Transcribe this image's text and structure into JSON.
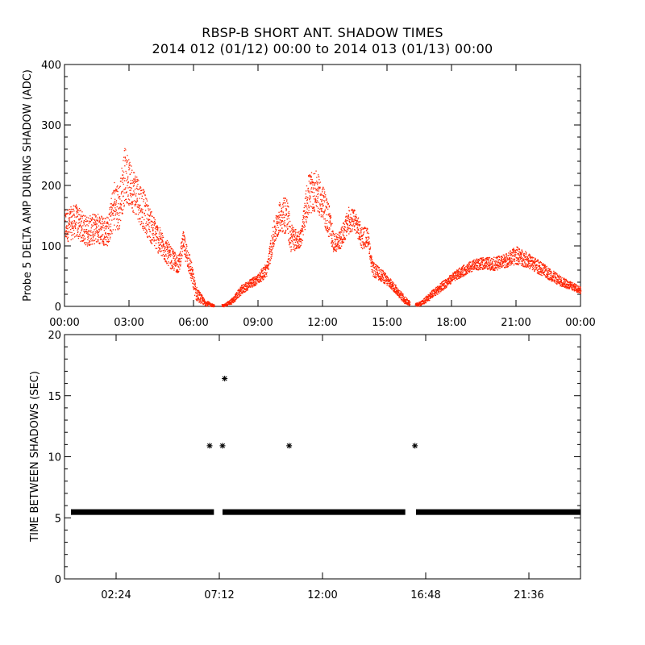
{
  "title": "RBSP-B SHORT ANT. SHADOW TIMES",
  "subtitle": "2014 012 (01/12) 00:00 to 2014 013 (01/13) 00:00",
  "colors": {
    "top_series": "#ff2200",
    "bottom_series": "#000000",
    "axes": "#000000",
    "background": "#ffffff"
  },
  "chart_data": [
    {
      "type": "scatter",
      "ylabel": "Probe 5 DELTA AMP DURING SHADOW (ADC)",
      "xlabel": "",
      "x_units": "hours since 2014-01-12 00:00",
      "xlim": [
        0,
        24
      ],
      "ylim": [
        0,
        400
      ],
      "x_ticks": [
        0,
        3,
        6,
        9,
        12,
        15,
        18,
        21,
        24
      ],
      "x_tick_labels": [
        "00:00",
        "03:00",
        "06:00",
        "09:00",
        "12:00",
        "15:00",
        "18:00",
        "21:00",
        "00:00"
      ],
      "y_ticks": [
        0,
        100,
        200,
        300,
        400
      ],
      "y_tick_labels": [
        "0",
        "100",
        "200",
        "300",
        "400"
      ],
      "grid": false,
      "series": [
        {
          "color": "#ff2200",
          "marker": "dot",
          "envelope": [
            {
              "x": 0.0,
              "low": 105,
              "high": 160
            },
            {
              "x": 0.5,
              "low": 115,
              "high": 170
            },
            {
              "x": 1.0,
              "low": 100,
              "high": 150
            },
            {
              "x": 1.5,
              "low": 105,
              "high": 155
            },
            {
              "x": 2.0,
              "low": 100,
              "high": 150
            },
            {
              "x": 2.3,
              "low": 130,
              "high": 210
            },
            {
              "x": 2.5,
              "low": 120,
              "high": 200
            },
            {
              "x": 2.8,
              "low": 175,
              "high": 270
            },
            {
              "x": 3.0,
              "low": 165,
              "high": 240
            },
            {
              "x": 3.3,
              "low": 150,
              "high": 225
            },
            {
              "x": 3.6,
              "low": 130,
              "high": 200
            },
            {
              "x": 4.0,
              "low": 105,
              "high": 160
            },
            {
              "x": 4.5,
              "low": 80,
              "high": 125
            },
            {
              "x": 5.0,
              "low": 60,
              "high": 95
            },
            {
              "x": 5.3,
              "low": 55,
              "high": 85
            },
            {
              "x": 5.5,
              "low": 90,
              "high": 125
            },
            {
              "x": 5.8,
              "low": 50,
              "high": 90
            },
            {
              "x": 6.1,
              "low": 10,
              "high": 35
            },
            {
              "x": 6.5,
              "low": 2,
              "high": 12
            },
            {
              "x": 6.9,
              "low": 0,
              "high": 4
            },
            {
              "x": 7.4,
              "low": 0,
              "high": 4
            },
            {
              "x": 7.8,
              "low": 5,
              "high": 15
            },
            {
              "x": 8.2,
              "low": 20,
              "high": 35
            },
            {
              "x": 8.6,
              "low": 30,
              "high": 45
            },
            {
              "x": 9.0,
              "low": 38,
              "high": 55
            },
            {
              "x": 9.4,
              "low": 50,
              "high": 75
            },
            {
              "x": 9.7,
              "low": 95,
              "high": 140
            },
            {
              "x": 10.0,
              "low": 125,
              "high": 175
            },
            {
              "x": 10.3,
              "low": 120,
              "high": 190
            },
            {
              "x": 10.5,
              "low": 90,
              "high": 140
            },
            {
              "x": 10.8,
              "low": 95,
              "high": 125
            },
            {
              "x": 11.0,
              "low": 100,
              "high": 130
            },
            {
              "x": 11.3,
              "low": 150,
              "high": 220
            },
            {
              "x": 11.7,
              "low": 160,
              "high": 225
            },
            {
              "x": 12.0,
              "low": 140,
              "high": 200
            },
            {
              "x": 12.3,
              "low": 110,
              "high": 170
            },
            {
              "x": 12.5,
              "low": 90,
              "high": 120
            },
            {
              "x": 12.8,
              "low": 95,
              "high": 125
            },
            {
              "x": 13.2,
              "low": 120,
              "high": 165
            },
            {
              "x": 13.5,
              "low": 125,
              "high": 160
            },
            {
              "x": 13.8,
              "low": 95,
              "high": 135
            },
            {
              "x": 14.1,
              "low": 100,
              "high": 130
            },
            {
              "x": 14.3,
              "low": 50,
              "high": 75
            },
            {
              "x": 14.8,
              "low": 40,
              "high": 60
            },
            {
              "x": 15.3,
              "low": 25,
              "high": 40
            },
            {
              "x": 15.8,
              "low": 5,
              "high": 18
            },
            {
              "x": 16.2,
              "low": 0,
              "high": 4
            },
            {
              "x": 16.6,
              "low": 2,
              "high": 10
            },
            {
              "x": 17.0,
              "low": 12,
              "high": 25
            },
            {
              "x": 17.5,
              "low": 25,
              "high": 40
            },
            {
              "x": 18.0,
              "low": 40,
              "high": 55
            },
            {
              "x": 18.5,
              "low": 50,
              "high": 68
            },
            {
              "x": 19.0,
              "low": 60,
              "high": 78
            },
            {
              "x": 19.5,
              "low": 62,
              "high": 82
            },
            {
              "x": 20.0,
              "low": 60,
              "high": 82
            },
            {
              "x": 20.5,
              "low": 65,
              "high": 88
            },
            {
              "x": 21.0,
              "low": 70,
              "high": 100
            },
            {
              "x": 21.5,
              "low": 65,
              "high": 90
            },
            {
              "x": 22.0,
              "low": 55,
              "high": 78
            },
            {
              "x": 22.5,
              "low": 45,
              "high": 65
            },
            {
              "x": 23.0,
              "low": 35,
              "high": 52
            },
            {
              "x": 23.5,
              "low": 28,
              "high": 42
            },
            {
              "x": 24.0,
              "low": 22,
              "high": 34
            }
          ],
          "gaps": [
            [
              6.95,
              7.3
            ],
            [
              16.05,
              16.3
            ]
          ]
        }
      ]
    },
    {
      "type": "scatter",
      "ylabel": "TIME BETWEEN SHADOWS (SEC)",
      "xlabel": "",
      "x_units": "hours since 2014-01-12 00:00",
      "xlim": [
        0,
        24
      ],
      "ylim": [
        0,
        20
      ],
      "x_ticks": [
        2.4,
        7.2,
        12.0,
        16.8,
        21.6
      ],
      "x_tick_labels": [
        "02:24",
        "07:12",
        "12:00",
        "16:48",
        "21:36"
      ],
      "y_ticks": [
        0,
        5,
        10,
        15,
        20
      ],
      "y_tick_labels": [
        "0",
        "5",
        "10",
        "15",
        "20"
      ],
      "grid": false,
      "series": [
        {
          "color": "#000000",
          "marker": "asterisk",
          "baseline": {
            "y": 5.47,
            "x_ranges": [
              [
                0.3,
                6.95
              ],
              [
                7.35,
                15.85
              ],
              [
                16.35,
                24
              ]
            ]
          },
          "points": [
            {
              "x": 6.75,
              "y": 10.9
            },
            {
              "x": 7.35,
              "y": 10.9
            },
            {
              "x": 7.45,
              "y": 16.4
            },
            {
              "x": 10.45,
              "y": 10.9
            },
            {
              "x": 16.3,
              "y": 10.9
            }
          ]
        }
      ]
    }
  ]
}
